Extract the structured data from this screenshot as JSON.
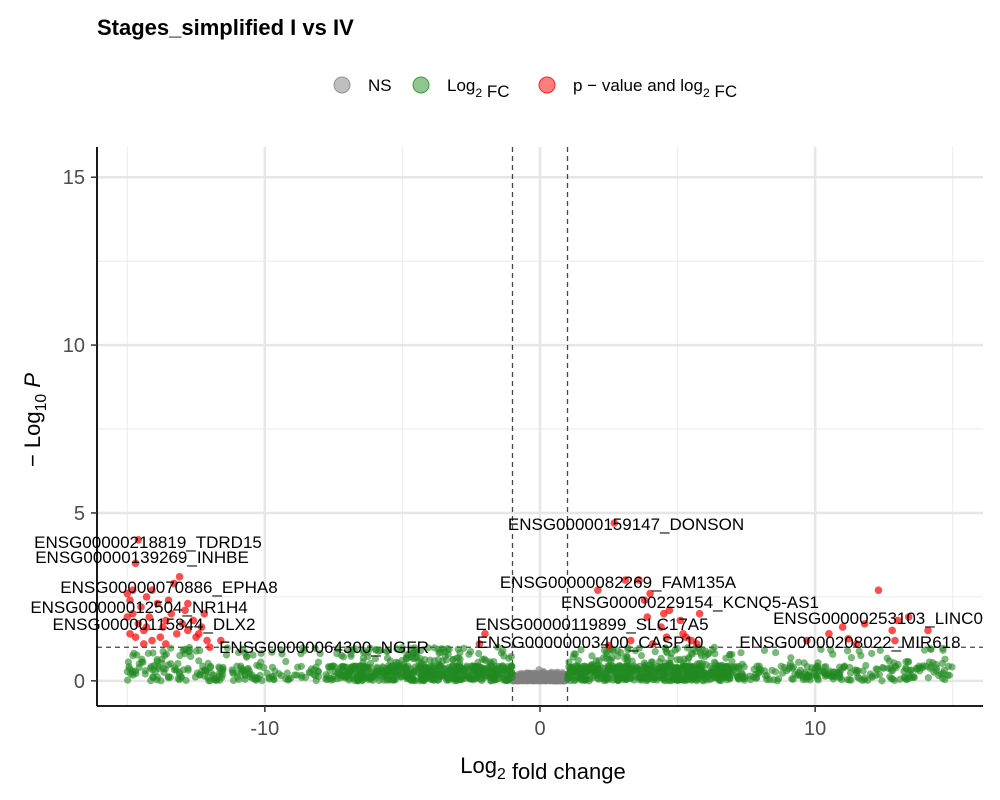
{
  "chart_data": {
    "type": "scatter",
    "title": "Stages_simplified I vs IV",
    "xlabel": "Log2 fold change",
    "ylabel": "− Log10 P",
    "xlim": [
      -16.1,
      16.1
    ],
    "ylim": [
      -0.75,
      15.9
    ],
    "x_ticks": [
      -10,
      0,
      10
    ],
    "y_ticks": [
      0,
      5,
      10,
      15
    ],
    "grid": true,
    "legend_position": "top",
    "fc_cutoff": 1,
    "p_cutoff_neglog10": 1.0,
    "legend": [
      {
        "key": "ns",
        "label": "NS",
        "color": "#808080"
      },
      {
        "key": "fc",
        "label": "Log2 FC",
        "color": "#228B22"
      },
      {
        "key": "pfc",
        "label": "p − value and log2 FC",
        "color": "#FF0000"
      }
    ],
    "labeled_genes": [
      {
        "label": "ENSG00000218819_TDRD15",
        "x": -14.6,
        "y": 4.2
      },
      {
        "label": "ENSG00000139269_INHBE",
        "x": -14.7,
        "y": 3.5
      },
      {
        "label": "ENSG00000070886_EPHA8",
        "x": -13.1,
        "y": 3.1
      },
      {
        "label": "ENSG00000012504_NR1H4",
        "x": -14.3,
        "y": 2.5
      },
      {
        "label": "ENSG00000115844_DLX2",
        "x": -12.8,
        "y": 1.5
      },
      {
        "label": "ENSG00000064300_NGFR",
        "x": -12.1,
        "y": 1.2
      },
      {
        "label": "ENSG00000159147_DONSON",
        "x": 2.7,
        "y": 4.7
      },
      {
        "label": "ENSG00000082269_FAM135A",
        "x": 3.6,
        "y": 3.0
      },
      {
        "label": "ENSG00000229154_KCNQ5-AS1",
        "x": 2.1,
        "y": 2.7
      },
      {
        "label": "ENSG00000253103_LINC0",
        "x": 13.4,
        "y": 1.9
      },
      {
        "label": "ENSG00000119899_SLC17A5",
        "x": 4.6,
        "y": 1.3
      },
      {
        "label": "ENSG00000003400_CASP10",
        "x": 5.7,
        "y": 1.1
      },
      {
        "label": "ENSG00000208022_MIR618",
        "x": 12.9,
        "y": 1.2
      }
    ],
    "red_points": [
      [
        -14.6,
        4.2
      ],
      [
        -14.7,
        3.5
      ],
      [
        -13.1,
        3.1
      ],
      [
        -14.3,
        2.5
      ],
      [
        -12.8,
        1.5
      ],
      [
        -12.1,
        1.2
      ],
      [
        -14.9,
        2.4
      ],
      [
        -14.5,
        2.2
      ],
      [
        -14.8,
        2.0
      ],
      [
        -14.2,
        1.9
      ],
      [
        -13.6,
        1.8
      ],
      [
        -13.9,
        2.3
      ],
      [
        -14.6,
        1.7
      ],
      [
        -15.0,
        1.9
      ],
      [
        -14.1,
        2.7
      ],
      [
        -13.4,
        2.0
      ],
      [
        -12.9,
        2.1
      ],
      [
        -13.7,
        1.6
      ],
      [
        -14.4,
        1.5
      ],
      [
        -13.2,
        1.4
      ],
      [
        -12.6,
        1.8
      ],
      [
        -12.3,
        1.6
      ],
      [
        -13.8,
        1.3
      ],
      [
        -14.7,
        1.3
      ],
      [
        -12.4,
        1.4
      ],
      [
        -13.5,
        2.4
      ],
      [
        -14.9,
        1.4
      ],
      [
        -12.2,
        2.0
      ],
      [
        -13.0,
        1.7
      ],
      [
        -14.4,
        1.1
      ],
      [
        -14.8,
        2.7
      ],
      [
        -12.8,
        2.3
      ],
      [
        -13.3,
        2.9
      ],
      [
        -11.6,
        1.2
      ],
      [
        -12.5,
        1.3
      ],
      [
        -14.1,
        1.2
      ],
      [
        -13.6,
        1.1
      ],
      [
        -15.0,
        2.6
      ],
      [
        -12.0,
        1.0
      ],
      [
        -14.3,
        1.6
      ],
      [
        -2.0,
        1.4
      ],
      [
        -2.2,
        1.1
      ],
      [
        2.7,
        4.7
      ],
      [
        3.6,
        3.0
      ],
      [
        2.1,
        2.7
      ],
      [
        3.1,
        3.0
      ],
      [
        4.0,
        2.6
      ],
      [
        3.8,
        2.4
      ],
      [
        4.5,
        2.0
      ],
      [
        4.7,
        2.1
      ],
      [
        5.1,
        1.8
      ],
      [
        5.8,
        2.0
      ],
      [
        5.3,
        1.3
      ],
      [
        5.2,
        1.4
      ],
      [
        4.4,
        1.6
      ],
      [
        3.3,
        1.2
      ],
      [
        5.5,
        1.2
      ],
      [
        4.1,
        1.1
      ],
      [
        4.6,
        1.3
      ],
      [
        5.7,
        1.1
      ],
      [
        2.5,
        1.05
      ],
      [
        3.9,
        1.9
      ],
      [
        12.3,
        2.7
      ],
      [
        13.4,
        1.9
      ],
      [
        14.1,
        1.5
      ],
      [
        12.8,
        1.5
      ],
      [
        11.8,
        1.7
      ],
      [
        11.0,
        1.6
      ],
      [
        12.9,
        1.2
      ],
      [
        11.5,
        1.1
      ],
      [
        13.0,
        1.8
      ],
      [
        10.5,
        1.4
      ],
      [
        9.7,
        1.2
      ],
      [
        11.2,
        1.25
      ]
    ]
  }
}
